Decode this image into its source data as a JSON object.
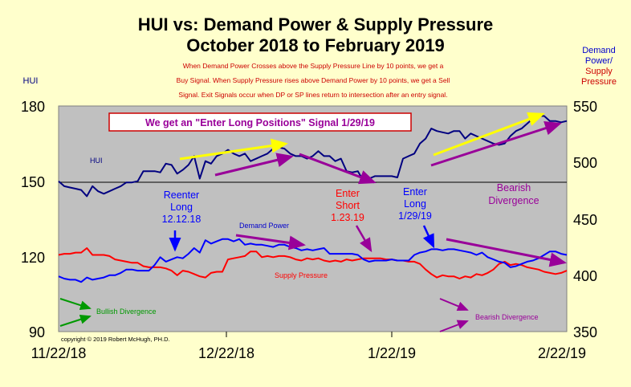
{
  "chart_data": {
    "type": "line",
    "title": "HUI vs: Demand Power & Supply Pressure",
    "subtitle": "October 2018 to February 2019",
    "colors": {
      "background": "#ffffcc",
      "plot": "#c0c0c0",
      "hui": "#000080",
      "demand": "#0000ff",
      "supply": "#ff0000",
      "note": "#cc0000",
      "purple": "#990099",
      "green": "#009900",
      "yellow": "#ffff00"
    },
    "description": [
      "When Demand Power Crosses  above the Supply Pressure Line by 10 points,  we get a",
      "Buy Signal.  When Supply Pressure  rises above Demand Power by 10 points,  we get a Sell",
      "Signal.  Exit Signals occur  when DP  or SP lines return to intersection after an entry signal."
    ],
    "left_axis": {
      "label": "HUI",
      "min": 90,
      "max": 180,
      "ticks": [
        "90",
        "120",
        "150",
        "180"
      ]
    },
    "right_axis": {
      "label_lines": [
        "Demand",
        "Power/",
        "Supply",
        "Pressure"
      ],
      "min": 350,
      "max": 550,
      "ticks": [
        "350",
        "400",
        "450",
        "500",
        "550"
      ]
    },
    "x_axis": {
      "ticks": [
        "11/22/18",
        "12/22/18",
        "1/22/19",
        "2/22/19"
      ],
      "index_max": 90
    },
    "grid_line_value": 150,
    "series": [
      {
        "name": "HUI",
        "axis": "left",
        "x": [
          0,
          1,
          2,
          3,
          4,
          5,
          6,
          7,
          8,
          9,
          10,
          11,
          12,
          13,
          14,
          15,
          16,
          17,
          18,
          19,
          20,
          21,
          22,
          23,
          24,
          25,
          26,
          27,
          28,
          29,
          30,
          31,
          32,
          33,
          34,
          35,
          36,
          37,
          38,
          39,
          40,
          41,
          42,
          43,
          44,
          45,
          46,
          47,
          48,
          49,
          50,
          51,
          52,
          53,
          54,
          55,
          56,
          57,
          58,
          59,
          60,
          61,
          62,
          63,
          64,
          65,
          66,
          67,
          68,
          69,
          70,
          71,
          72,
          73,
          74,
          75,
          76,
          77,
          78,
          79,
          80,
          81,
          82,
          83,
          84,
          85,
          86,
          87,
          88,
          89,
          90
        ],
        "values": [
          150,
          148,
          147.5,
          147,
          146.5,
          144,
          148,
          146,
          145,
          146,
          147,
          148,
          149.5,
          149.5,
          150,
          154,
          154,
          154,
          153.5,
          157,
          156.5,
          153,
          154.5,
          156.5,
          160,
          151,
          158,
          157,
          160,
          161,
          162.5,
          161,
          160,
          161,
          158,
          159,
          160,
          161,
          163,
          163.5,
          163,
          161,
          160,
          160,
          159,
          160,
          162,
          160,
          160,
          158,
          159,
          154,
          153.5,
          154,
          150,
          151,
          152,
          152,
          152,
          152,
          151.5,
          159,
          160,
          161,
          165,
          167,
          171,
          170,
          169.5,
          169,
          170,
          170,
          167,
          169,
          168,
          167,
          166,
          165,
          164.5,
          165,
          168,
          170,
          171,
          173,
          175,
          176,
          176,
          174,
          174,
          173.5,
          174
        ]
      },
      {
        "name": "Demand Power",
        "axis": "right",
        "x": [
          0,
          1,
          2,
          3,
          4,
          5,
          6,
          7,
          8,
          9,
          10,
          11,
          12,
          13,
          14,
          15,
          16,
          17,
          18,
          19,
          20,
          21,
          22,
          23,
          24,
          25,
          26,
          27,
          28,
          29,
          30,
          31,
          32,
          33,
          34,
          35,
          36,
          37,
          38,
          39,
          40,
          41,
          42,
          43,
          44,
          45,
          46,
          47,
          48,
          49,
          50,
          51,
          52,
          53,
          54,
          55,
          56,
          57,
          58,
          59,
          60,
          61,
          62,
          63,
          64,
          65,
          66,
          67,
          68,
          69,
          70,
          71,
          72,
          73,
          74,
          75,
          76,
          77,
          78,
          79,
          80,
          81,
          82,
          83,
          84,
          85,
          86,
          87,
          88,
          89,
          90
        ],
        "values": [
          399,
          397,
          396,
          396,
          394,
          398,
          396,
          397,
          398,
          400,
          400,
          402,
          405,
          405,
          404,
          404,
          404,
          409,
          416,
          412,
          414,
          416,
          415,
          419,
          424,
          420,
          431,
          428,
          430,
          432,
          432,
          430,
          432,
          427,
          428,
          427,
          427,
          426,
          425,
          427,
          427,
          425,
          424,
          422,
          423,
          422,
          423,
          424,
          419,
          419,
          419,
          419,
          419,
          418,
          414,
          412,
          413,
          413,
          413,
          414,
          413,
          413,
          413,
          418,
          420,
          421,
          423,
          423,
          422,
          423,
          423,
          422,
          421,
          420,
          418,
          420,
          416,
          414,
          412,
          411,
          407,
          408,
          410,
          412,
          413,
          415,
          418,
          421,
          421,
          419,
          418
        ]
      },
      {
        "name": "Supply Pressure",
        "axis": "right",
        "x": [
          0,
          1,
          2,
          3,
          4,
          5,
          6,
          7,
          8,
          9,
          10,
          11,
          12,
          13,
          14,
          15,
          16,
          17,
          18,
          19,
          20,
          21,
          22,
          23,
          24,
          25,
          26,
          27,
          28,
          29,
          30,
          31,
          32,
          33,
          34,
          35,
          36,
          37,
          38,
          39,
          40,
          41,
          42,
          43,
          44,
          45,
          46,
          47,
          48,
          49,
          50,
          51,
          52,
          53,
          54,
          55,
          56,
          57,
          58,
          59,
          60,
          61,
          62,
          63,
          64,
          65,
          66,
          67,
          68,
          69,
          70,
          71,
          72,
          73,
          74,
          75,
          76,
          77,
          78,
          79,
          80,
          81,
          82,
          83,
          84,
          85,
          86,
          87,
          88,
          89,
          90
        ],
        "values": [
          418,
          419,
          419,
          420,
          420,
          424,
          418,
          418,
          418,
          417,
          414,
          413,
          412,
          411,
          411,
          408,
          407,
          407,
          407,
          406,
          404,
          400,
          404,
          403,
          401,
          399,
          398,
          402,
          403,
          403,
          414,
          415,
          416,
          417,
          421,
          421,
          416,
          417,
          416,
          417,
          417,
          416,
          414,
          413,
          415,
          414,
          415,
          413,
          412,
          413,
          412,
          414,
          413,
          414,
          415,
          415,
          415,
          415,
          414,
          414,
          413,
          413,
          412,
          412,
          410,
          405,
          401,
          398,
          400,
          399,
          399,
          397,
          399,
          398,
          401,
          400,
          402,
          405,
          410,
          412,
          409,
          410,
          409,
          407,
          406,
          405,
          403,
          402,
          401,
          402,
          404
        ]
      }
    ],
    "annotations": {
      "signal_box": "We get an \"Enter Long Positions\" Signal 1/29/19",
      "hui_label": "HUI",
      "reenter": [
        "Reenter",
        "Long",
        "12.12.18"
      ],
      "demand_label": "Demand Power",
      "enter_short": [
        "Enter",
        "Short",
        "1.23.19"
      ],
      "enter_long": [
        "Enter",
        "Long",
        "1/29/19"
      ],
      "bearish_top": [
        "Bearish",
        "Divergence"
      ],
      "supply_label": "Supply Pressure",
      "bullish": "Bullish Divergence",
      "bearish_bottom": "Bearish Divergence",
      "copyright": "copyright © 2019   Robert  McHugh,  PH.D."
    }
  }
}
